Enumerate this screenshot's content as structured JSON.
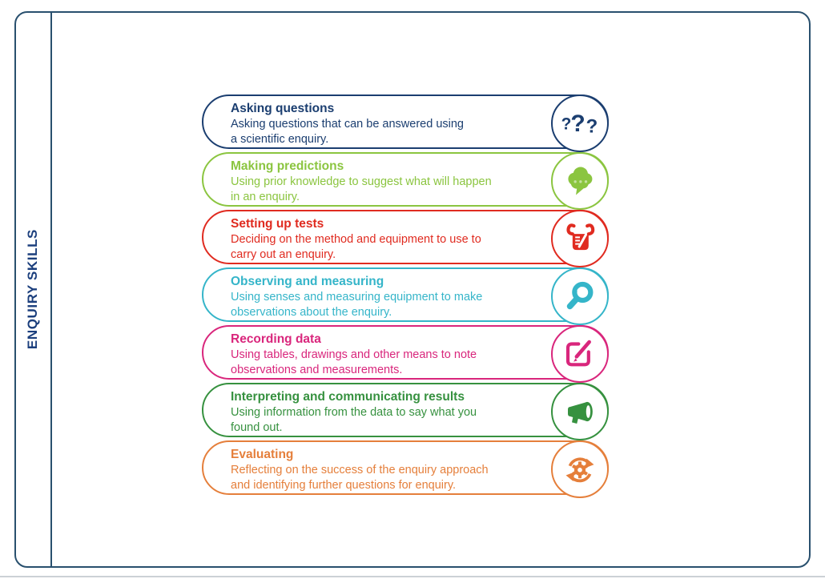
{
  "sidebar": {
    "label": "ENQUIRY SKILLS"
  },
  "colors": {
    "frame": "#29506e",
    "sidebar_label": "#1c3f7d",
    "page_edge_line": "#ccd1d6"
  },
  "skills": [
    {
      "title": "Asking questions",
      "description_lines": [
        "Asking questions that can be answered using",
        "a scientific enquiry."
      ],
      "color": "#1b3e70",
      "icon": "question-marks-icon"
    },
    {
      "title": "Making predictions",
      "description_lines": [
        "Using prior knowledge to suggest what will happen",
        "in an enquiry."
      ],
      "color": "#8bc540",
      "icon": "thought-cloud-icon"
    },
    {
      "title": "Setting up tests",
      "description_lines": [
        "Deciding on the method and equipment to use to",
        "carry out an enquiry."
      ],
      "color": "#e02b20",
      "icon": "beaker-icon"
    },
    {
      "title": "Observing and measuring",
      "description_lines": [
        "Using senses and measuring equipment to make",
        "observations about the enquiry."
      ],
      "color": "#35b5c9",
      "icon": "magnifier-icon"
    },
    {
      "title": "Recording data",
      "description_lines": [
        "Using tables, drawings and other means to note",
        "observations and measurements."
      ],
      "color": "#d9267c",
      "icon": "edit-pencil-icon"
    },
    {
      "title": "Interpreting and communicating results",
      "description_lines": [
        "Using information from the data to say what you",
        "found out."
      ],
      "color": "#36913f",
      "icon": "megaphone-icon"
    },
    {
      "title": "Evaluating",
      "description_lines": [
        "Reflecting on the success of the enquiry approach",
        "and identifying further questions for enquiry."
      ],
      "color": "#e57f3b",
      "icon": "cycle-gear-icon"
    }
  ]
}
